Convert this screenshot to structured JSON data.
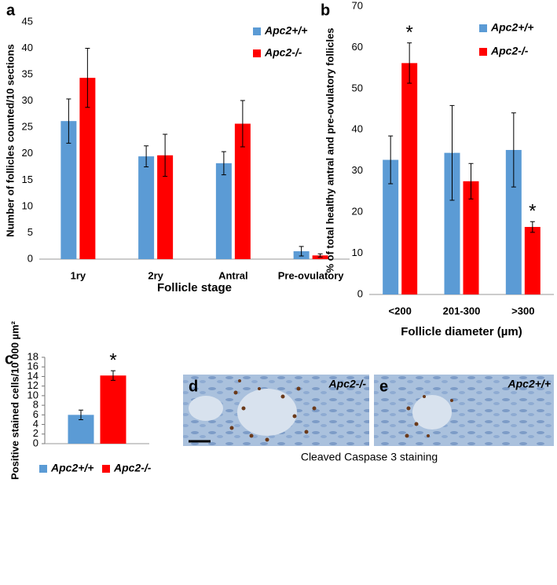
{
  "chart_data": [
    {
      "type": "bar",
      "panel_label": "a",
      "x_label": "Follicle stage",
      "y_label": "Number of follicles counted/10 sections",
      "categories": [
        "1ry",
        "2ry",
        "Antral",
        "Pre-ovulatory"
      ],
      "series": [
        {
          "name": "Apc2+/+",
          "color": "#5b9bd5",
          "values": [
            26.2,
            19.5,
            18.2,
            1.5
          ],
          "errors": [
            4.2,
            2.0,
            2.2,
            0.9
          ]
        },
        {
          "name": "Apc2-/-",
          "color": "#ff0000",
          "values": [
            34.4,
            19.7,
            25.7,
            0.7
          ],
          "errors": [
            5.6,
            4.0,
            4.4,
            0.3
          ]
        }
      ],
      "ylim": [
        0,
        45
      ],
      "yticks": [
        0,
        5,
        10,
        15,
        20,
        25,
        30,
        35,
        40,
        45
      ],
      "grid": false,
      "legend": "top-right"
    },
    {
      "type": "bar",
      "panel_label": "b",
      "x_label": "Follicle diameter (µm)",
      "y_label": "% of total healthy antral and pre-ovulatory follicles",
      "categories": [
        "<200",
        "201-300",
        ">300"
      ],
      "series": [
        {
          "name": "Apc2+/+",
          "color": "#5b9bd5",
          "values": [
            32.7,
            34.4,
            35.1
          ],
          "errors": [
            5.8,
            11.5,
            9.0
          ]
        },
        {
          "name": "Apc2-/-",
          "color": "#ff0000",
          "values": [
            56.2,
            27.5,
            16.4
          ],
          "errors": [
            4.9,
            4.3,
            1.3
          ],
          "significance": [
            "*",
            null,
            "*"
          ]
        }
      ],
      "ylim": [
        0,
        70
      ],
      "yticks": [
        0,
        10,
        20,
        30,
        40,
        50,
        60,
        70
      ],
      "grid": false,
      "legend": "top-right"
    },
    {
      "type": "bar",
      "panel_label": "c",
      "y_label": "Positive stained cells/10 000 µm²",
      "categories": [
        null
      ],
      "series": [
        {
          "name": "Apc2+/+",
          "color": "#5b9bd5",
          "values": [
            6.0
          ],
          "errors": [
            1.0
          ]
        },
        {
          "name": "Apc2-/-",
          "color": "#ff0000",
          "values": [
            14.2
          ],
          "errors": [
            1.0
          ],
          "significance": [
            "*"
          ]
        }
      ],
      "ylim": [
        0,
        18
      ],
      "yticks": [
        0,
        2,
        4,
        6,
        8,
        10,
        12,
        14,
        16,
        18
      ],
      "grid": false,
      "legend": "bottom"
    }
  ],
  "images": [
    {
      "panel_label": "d",
      "genotype": "Apc2-/-"
    },
    {
      "panel_label": "e",
      "genotype": "Apc2+/+"
    }
  ],
  "images_caption": "Cleaved Caspase 3 staining"
}
